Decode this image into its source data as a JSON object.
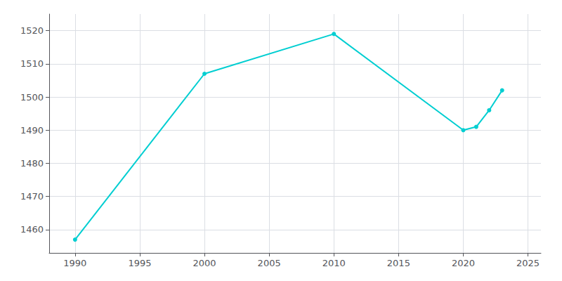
{
  "chart_data": {
    "type": "line",
    "x": [
      1990,
      2000,
      2010,
      2020,
      2021,
      2022,
      2023
    ],
    "values": [
      1457,
      1507,
      1519,
      1490,
      1491,
      1496,
      1502
    ],
    "color": "#00CED1",
    "marker": "circle",
    "xlim": [
      1988,
      2026
    ],
    "ylim": [
      1453,
      1525
    ],
    "xticks": [
      1990,
      1995,
      2000,
      2005,
      2010,
      2015,
      2020,
      2025
    ],
    "yticks": [
      1460,
      1470,
      1480,
      1490,
      1500,
      1510,
      1520
    ],
    "grid": true
  }
}
